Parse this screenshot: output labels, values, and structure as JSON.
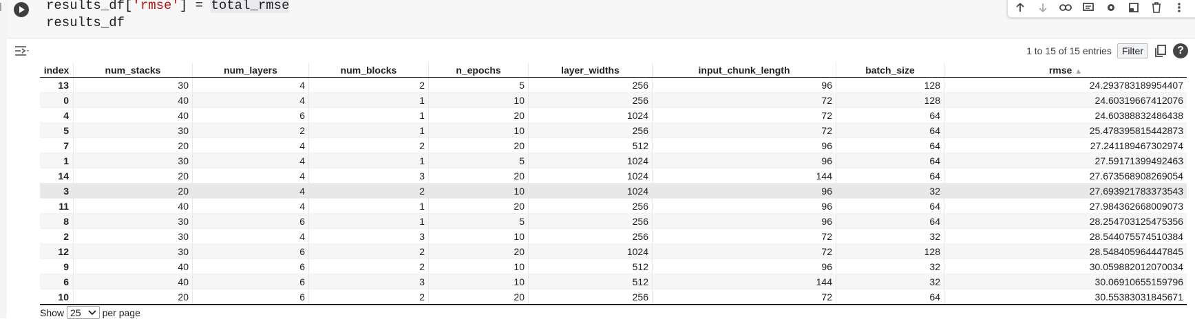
{
  "code": {
    "line1_prefix": "results_df[",
    "line1_string": "'rmse'",
    "line1_mid": "] = ",
    "line1_var": "total_rmse",
    "line2": "results_df"
  },
  "toolbar_icons": [
    "move-up-icon",
    "move-down-icon",
    "link-icon",
    "comment-icon",
    "settings-icon",
    "mirror-cell-icon",
    "delete-icon",
    "more-icon"
  ],
  "table": {
    "entries_text": "1 to 15 of 15 entries",
    "filter_label": "Filter",
    "help_label": "?",
    "sort_indicator": "▲",
    "columns": [
      "index",
      "num_stacks",
      "num_layers",
      "num_blocks",
      "n_epochs",
      "layer_widths",
      "input_chunk_length",
      "batch_size",
      "rmse"
    ],
    "rows": [
      [
        "13",
        "30",
        "4",
        "2",
        "5",
        "256",
        "96",
        "128",
        "24.293783189954407"
      ],
      [
        "0",
        "40",
        "4",
        "1",
        "10",
        "256",
        "72",
        "128",
        "24.60319667412076"
      ],
      [
        "4",
        "40",
        "6",
        "1",
        "20",
        "1024",
        "72",
        "64",
        "24.60388832486438"
      ],
      [
        "5",
        "30",
        "2",
        "1",
        "10",
        "256",
        "72",
        "64",
        "25.478395815442873"
      ],
      [
        "7",
        "20",
        "4",
        "2",
        "20",
        "512",
        "96",
        "64",
        "27.241189467302974"
      ],
      [
        "1",
        "30",
        "4",
        "1",
        "5",
        "1024",
        "96",
        "64",
        "27.59171399492463"
      ],
      [
        "14",
        "20",
        "4",
        "3",
        "20",
        "1024",
        "144",
        "64",
        "27.673568908269054"
      ],
      [
        "3",
        "20",
        "4",
        "2",
        "10",
        "1024",
        "96",
        "32",
        "27.693921783373543"
      ],
      [
        "11",
        "40",
        "4",
        "1",
        "20",
        "256",
        "96",
        "64",
        "27.984362668009073"
      ],
      [
        "8",
        "30",
        "6",
        "1",
        "5",
        "256",
        "96",
        "64",
        "28.254703125475356"
      ],
      [
        "2",
        "30",
        "4",
        "3",
        "10",
        "256",
        "72",
        "32",
        "28.544075574510384"
      ],
      [
        "12",
        "30",
        "6",
        "2",
        "20",
        "1024",
        "72",
        "128",
        "28.548405964447845"
      ],
      [
        "9",
        "40",
        "6",
        "2",
        "10",
        "512",
        "96",
        "32",
        "30.059882012070034"
      ],
      [
        "6",
        "40",
        "6",
        "3",
        "10",
        "512",
        "144",
        "32",
        "30.06910655159796"
      ],
      [
        "10",
        "20",
        "6",
        "2",
        "20",
        "256",
        "72",
        "64",
        "30.55383031845671"
      ]
    ]
  },
  "pager": {
    "show_label": "Show",
    "per_page_value": "25",
    "per_page_label": "per page"
  }
}
